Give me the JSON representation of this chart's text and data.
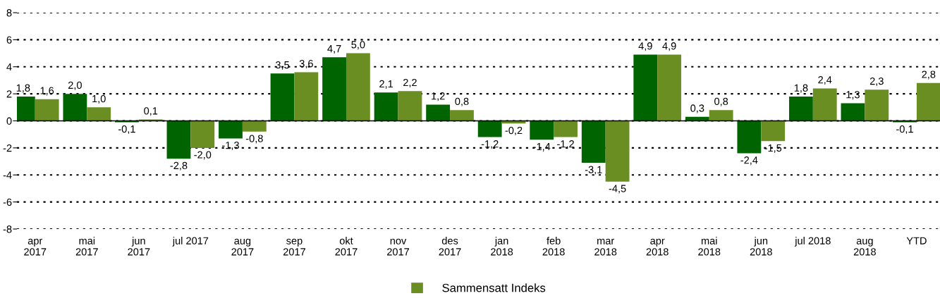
{
  "chart_data": {
    "type": "bar",
    "categories": [
      "apr\n2017",
      "mai\n2017",
      "jun\n2017",
      "jul 2017",
      "aug\n2017",
      "sep\n2017",
      "okt\n2017",
      "nov\n2017",
      "des\n2017",
      "jan\n2018",
      "feb\n2018",
      "mar\n2018",
      "apr\n2018",
      "mai\n2018",
      "jun\n2018",
      "jul 2018",
      "aug\n2018",
      "YTD"
    ],
    "series": [
      {
        "color": "#006400",
        "values": [
          1.8,
          2.0,
          -0.1,
          -2.8,
          -1.3,
          3.5,
          4.7,
          2.1,
          1.2,
          -1.2,
          -1.4,
          -3.1,
          4.9,
          0.3,
          -2.4,
          1.8,
          1.3,
          -0.1
        ],
        "value_labels": [
          "1,8",
          "2,0",
          "-0,1",
          "-2,8",
          "-1,3",
          "3,5",
          "4,7",
          "2,1",
          "1,2",
          "-1,2",
          "-1,4",
          "-3,1",
          "4,9",
          "0,3",
          "-2,4",
          "1,8",
          "1,3",
          "-0,1"
        ]
      },
      {
        "name": "Sammensatt Indeks",
        "color": "#6b8e23",
        "values": [
          1.6,
          1.0,
          0.1,
          -2.0,
          -0.8,
          3.6,
          5.0,
          2.2,
          0.8,
          -0.2,
          -1.2,
          -4.5,
          4.9,
          0.8,
          -1.5,
          2.4,
          2.3,
          2.8
        ],
        "value_labels": [
          "1,6",
          "1,0",
          "0,1",
          "-2,0",
          "-0,8",
          "3,6",
          "5,0",
          "2,2",
          "0,8",
          "-0,2",
          "-1,2",
          "-4,5",
          "4,9",
          "0,8",
          "-1,5",
          "2,4",
          "2,3",
          "2,8"
        ]
      }
    ],
    "ylim": [
      -8,
      8
    ],
    "yticks": [
      -8,
      -6,
      -4,
      -2,
      0,
      2,
      4,
      6,
      8
    ],
    "grid": "y",
    "line_style": "dotted",
    "legend": "bottom"
  }
}
